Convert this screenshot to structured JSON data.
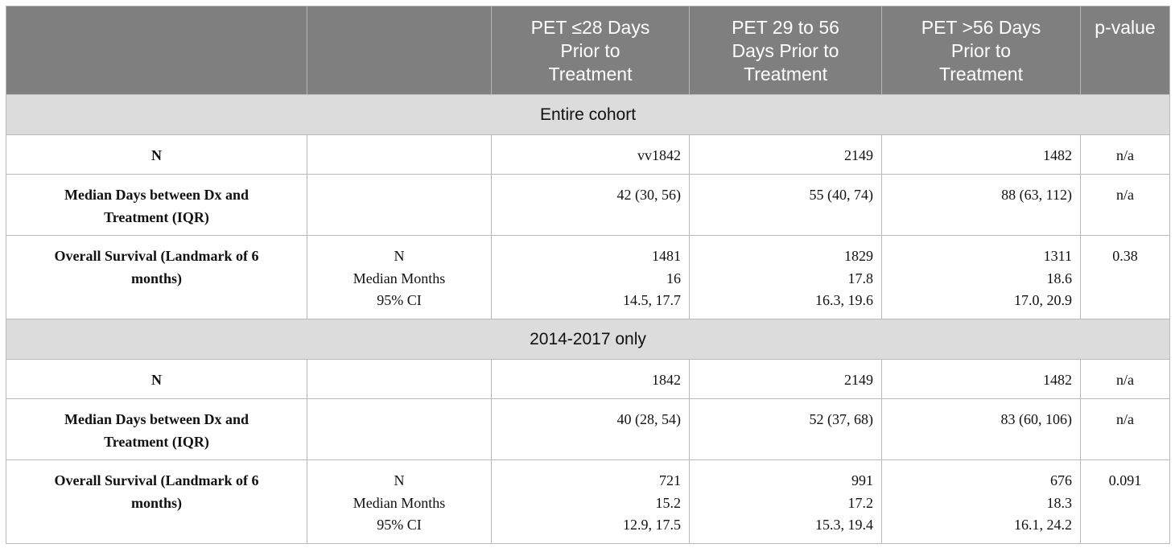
{
  "header": {
    "col1": "",
    "col2": "",
    "col3": [
      "PET ≤28 Days",
      "Prior to",
      "Treatment"
    ],
    "col4": [
      "PET 29 to 56",
      "Days Prior to",
      "Treatment"
    ],
    "col5": [
      "PET >56 Days",
      "Prior to",
      "Treatment"
    ],
    "col6": "p-value"
  },
  "sections": [
    {
      "title": "Entire cohort",
      "n": {
        "label": "N",
        "v1": "vv1842",
        "v2": "2149",
        "v3": "1482",
        "p": "n/a"
      },
      "median_days": {
        "label": [
          "Median Days between Dx and",
          "Treatment (IQR)"
        ],
        "v1": "42 (30, 56)",
        "v2": "55 (40, 74)",
        "v3": "88 (63, 112)",
        "p": "n/a"
      },
      "os": {
        "label": [
          "Overall Survival (Landmark of 6",
          "months)"
        ],
        "sub": [
          "N",
          "Median Months",
          "95% CI"
        ],
        "v1": [
          "1481",
          "16",
          "14.5, 17.7"
        ],
        "v2": [
          "1829",
          "17.8",
          "16.3, 19.6"
        ],
        "v3": [
          "1311",
          "18.6",
          "17.0, 20.9"
        ],
        "p": "0.38"
      }
    },
    {
      "title": "2014-2017 only",
      "n": {
        "label": "N",
        "v1": "1842",
        "v2": "2149",
        "v3": "1482",
        "p": "n/a"
      },
      "median_days": {
        "label": [
          "Median Days between Dx and",
          "Treatment (IQR)"
        ],
        "v1": "40 (28, 54)",
        "v2": "52 (37, 68)",
        "v3": "83 (60, 106)",
        "p": "n/a"
      },
      "os": {
        "label": [
          "Overall Survival (Landmark of 6",
          "months)"
        ],
        "sub": [
          "N",
          "Median Months",
          "95% CI"
        ],
        "v1": [
          "721",
          "15.2",
          "12.9, 17.5"
        ],
        "v2": [
          "991",
          "17.2",
          "15.3, 19.4"
        ],
        "v3": [
          "676",
          "18.3",
          "16.1, 24.2"
        ],
        "p": "0.091"
      }
    }
  ]
}
